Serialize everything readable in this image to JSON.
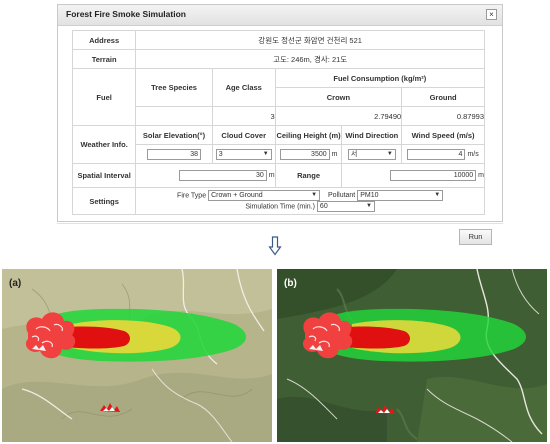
{
  "dialog": {
    "title": "Forest Fire Smoke Simulation",
    "close_glyph": "×",
    "address_label": "Address",
    "address_value": "강원도 정선군 화암면 건천리 521",
    "terrain_label": "Terrain",
    "terrain_value": "고도: 246m, 경사: 21도",
    "fuel_label": "Fuel",
    "tree_species_label": "Tree Species",
    "age_class_label": "Age Class",
    "fuel_consumption_label": "Fuel Consumption (kg/m²)",
    "crown_label": "Crown",
    "ground_label": "Ground",
    "age_class_value": "3",
    "crown_value": "2.79490",
    "ground_value": "0.87993",
    "weather_label": "Weather Info.",
    "solar_elevation_label": "Solar Elevation(°)",
    "cloud_cover_label": "Cloud Cover",
    "ceiling_height_label": "Ceiling Height (m)",
    "wind_direction_label": "Wind Direction",
    "wind_speed_label": "Wind Speed (m/s)",
    "solar_elevation_value": "38",
    "cloud_cover_value": "3",
    "ceiling_height_value": "3500",
    "ceiling_height_unit": "m",
    "wind_direction_value": "서",
    "wind_speed_value": "4",
    "wind_speed_unit": "m/s",
    "spatial_interval_label": "Spatial Interval",
    "spatial_interval_value": "30",
    "spatial_interval_unit": "m",
    "range_label": "Range",
    "range_value": "10000",
    "range_unit": "m",
    "settings_label": "Settings",
    "fire_type_label": "Fire Type",
    "fire_type_value": "Crown + Ground",
    "pollutant_label": "Pollutant",
    "pollutant_value": "PM10",
    "sim_time_label": "Simulation Time (min.)",
    "sim_time_value": "60",
    "dropdown_glyph": "▼"
  },
  "run_label": "Run",
  "arrow_icon": "down-arrow-icon",
  "maps": [
    {
      "label": "(a)",
      "basemap": "terrain"
    },
    {
      "label": "(b)",
      "basemap": "satellite"
    }
  ],
  "colors": {
    "plume_green": "#22d63a",
    "plume_yellow": "#d8d83a",
    "plume_red": "#e01010",
    "fire_red": "#f04040"
  }
}
